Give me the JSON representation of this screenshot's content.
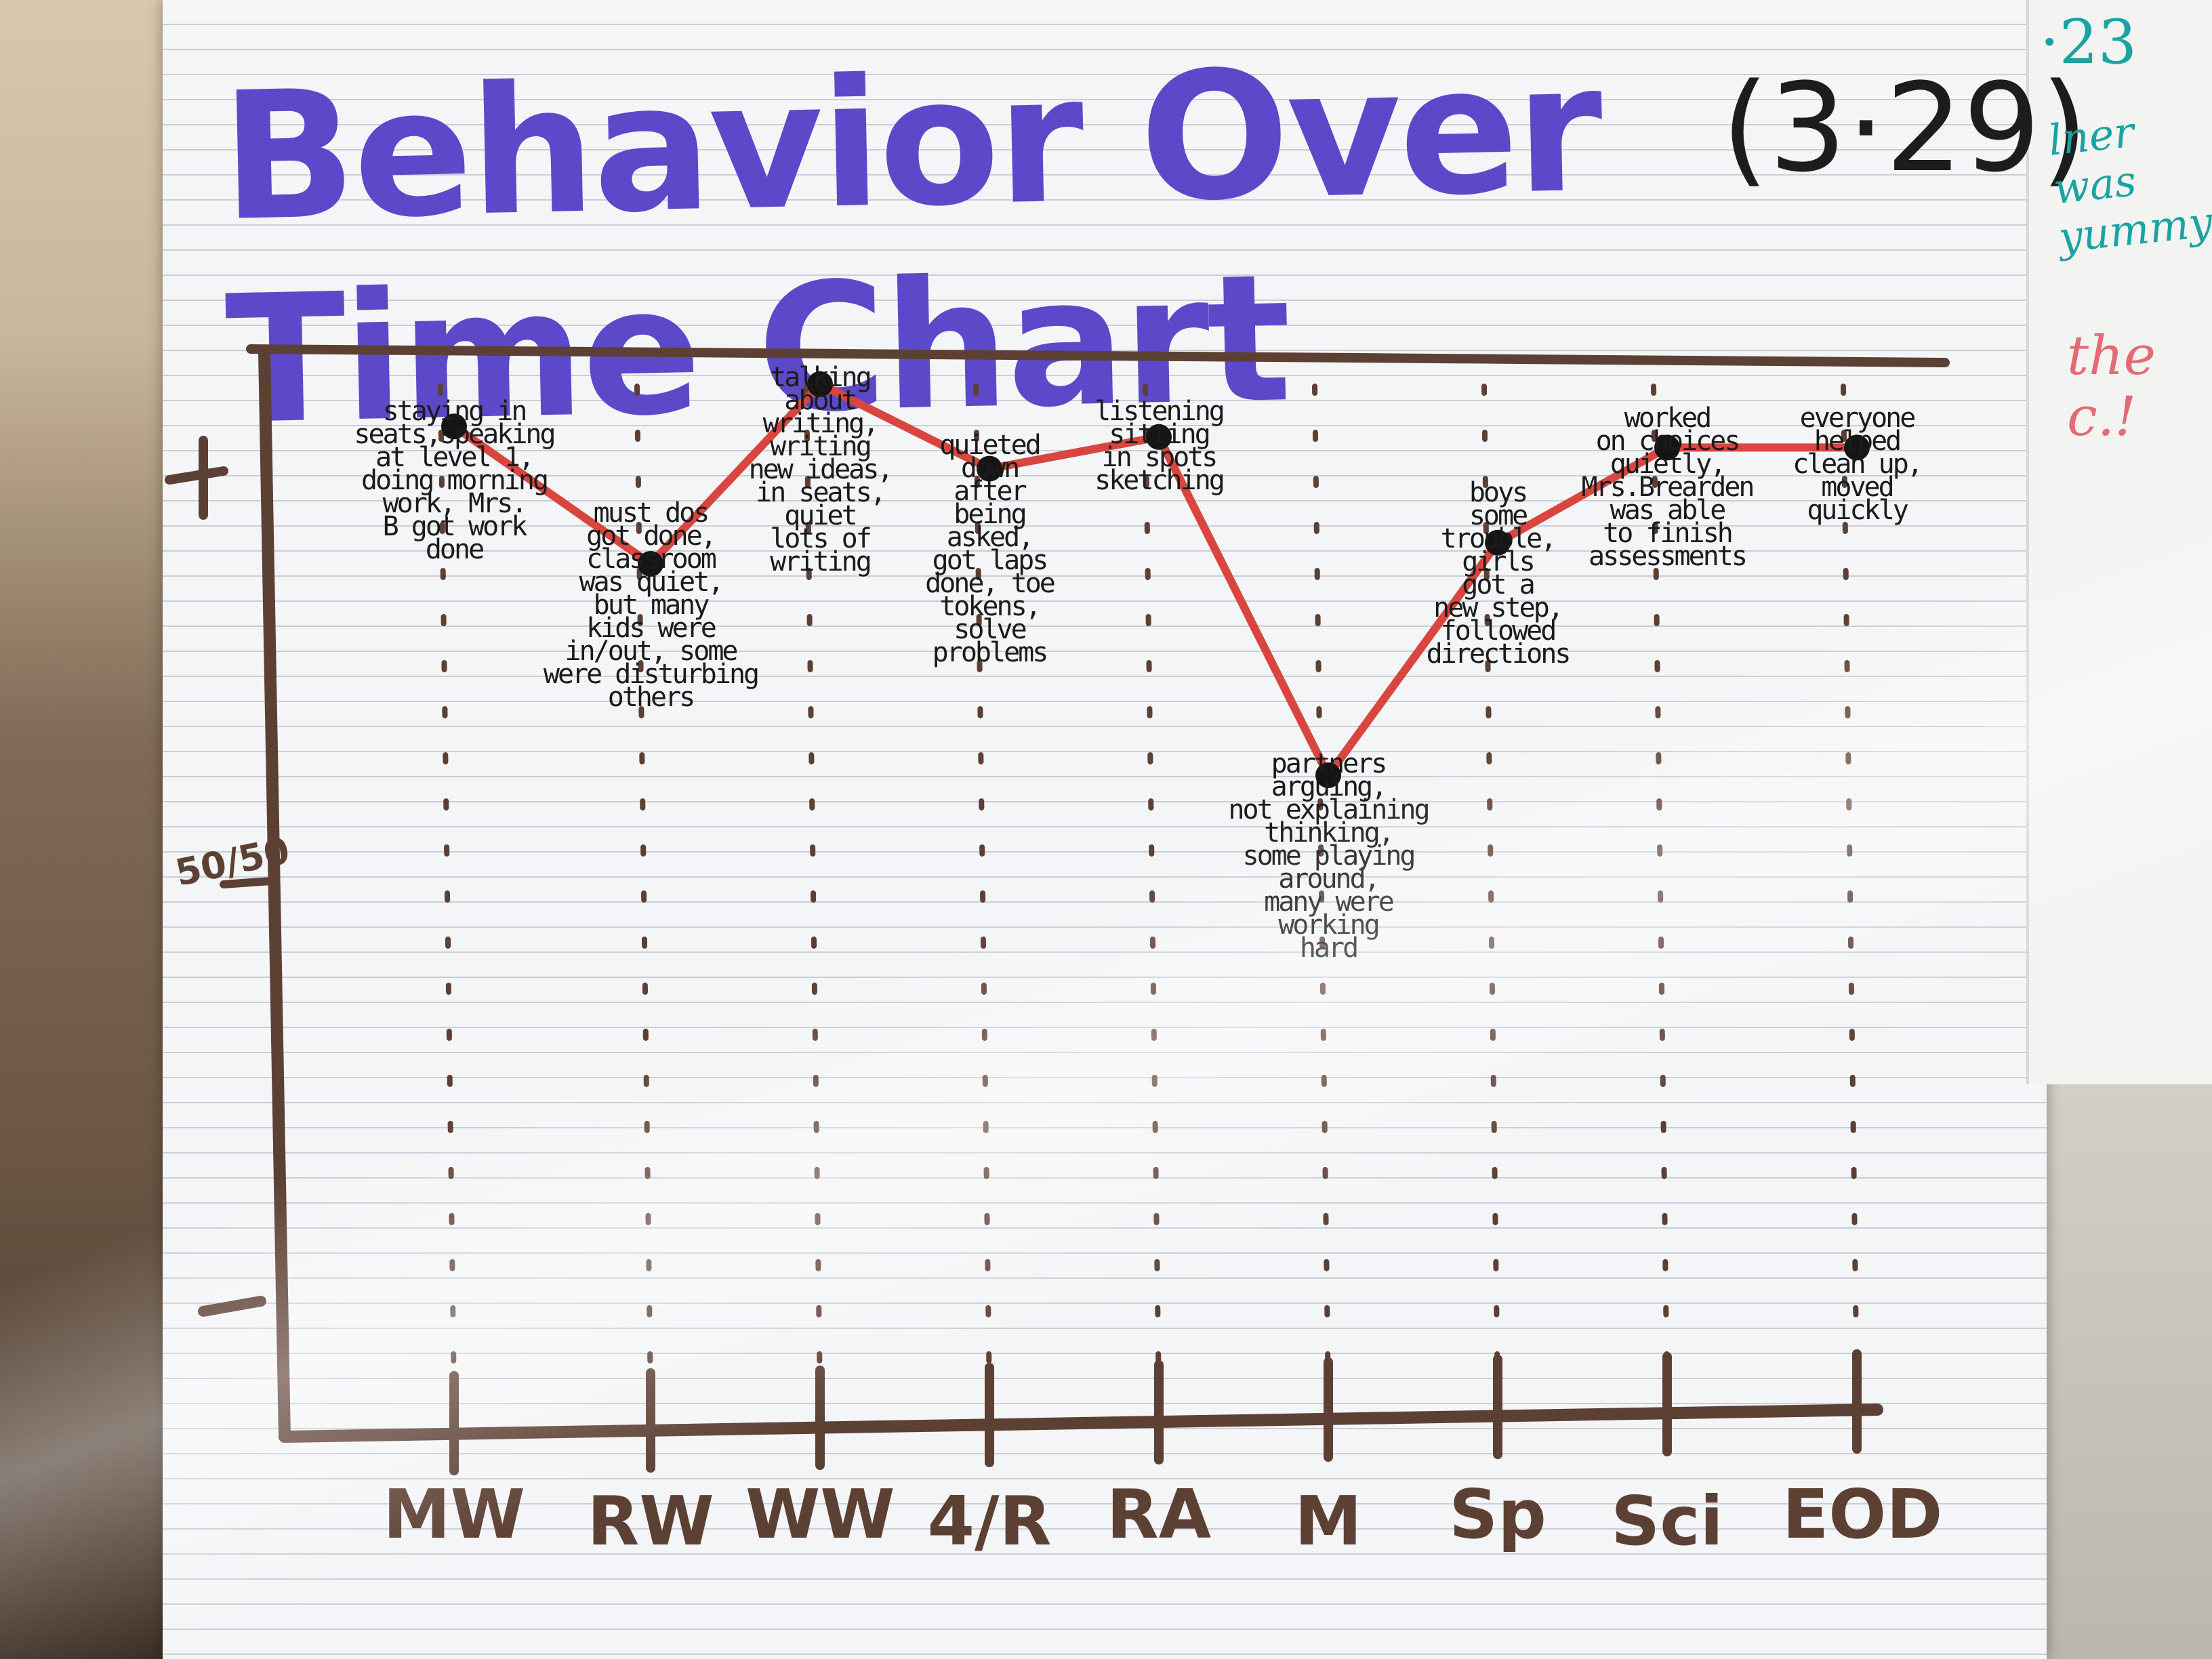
{
  "chart_data": {
    "type": "line",
    "title": "Behavior Over Time Chart",
    "date": "(3·29)",
    "xlabel": "",
    "ylabel": "",
    "y_tick_labels": [
      "+",
      "50/50",
      "-"
    ],
    "ylim": [
      0,
      100
    ],
    "categories": [
      "MW",
      "RW",
      "WW",
      "4/R",
      "RA",
      "M",
      "Sp",
      "Sci",
      "EOD"
    ],
    "series": [
      {
        "name": "Behavior",
        "color": "#d9453f",
        "values": [
          93,
          80,
          97,
          89,
          92,
          60,
          82,
          91,
          91
        ]
      }
    ],
    "annotations": [
      "staying in\nseats,speaking\nat level 1,\ndoing morning\nwork, Mrs.\nB got work\ndone",
      "must dos\ngot done,\nclassroom\nwas quiet,\nbut many\nkids were\nin/out, some\nwere disturbing\nothers",
      "talking\nabout\nwriting,\nwriting\nnew ideas,\nin seats,\nquiet\nlots of\nwriting",
      "quieted\ndown\nafter\nbeing\nasked,\ngot laps\ndone, toe\ntokens,\nsolve\nproblems",
      "listening\nsitting\nin spots\nsketching",
      "partners\narguing,\nnot explaining\nthinking,\nsome playing\naround,\nmany were\nworking\nhard",
      "boys\nsome\ntrouble,\ngirls\ngot a\nnew step,\nfollowed\ndirections",
      "worked\non choices\nquietly,\nMrs.Brearden\nwas able\nto finish\nassessments",
      "everyone\nhelped\nclean up,\nmoved\nquickly"
    ]
  },
  "colors": {
    "title": "#5b49c9",
    "axis": "#5d4034",
    "line": "#d9453f",
    "marker": "#151515"
  }
}
